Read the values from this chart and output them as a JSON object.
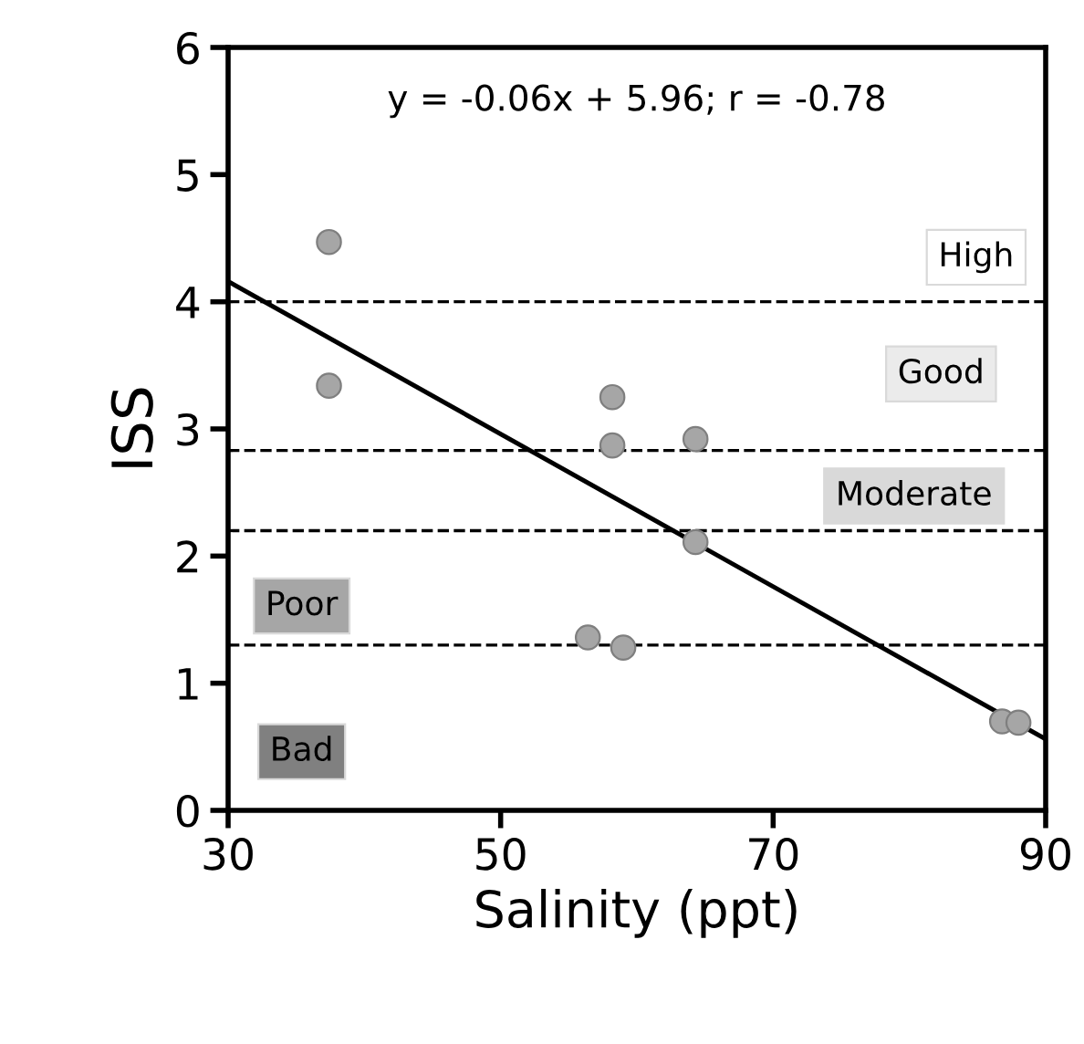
{
  "chart_data": {
    "type": "scatter",
    "xlabel": "Salinity (ppt)",
    "ylabel": "ISS",
    "xlim": [
      30,
      90
    ],
    "xticks": [
      30,
      50,
      70,
      90
    ],
    "ylim": [
      0,
      6
    ],
    "yticks": [
      0,
      1,
      2,
      3,
      4,
      5,
      6
    ],
    "grid": false,
    "marker": "circle",
    "series": [
      {
        "color": "#a6a6a6",
        "x": [
          37.4,
          37.4,
          58.2,
          58.2,
          64.3,
          64.3,
          56.4,
          59.0,
          86.8,
          88.0
        ],
        "values": [
          4.47,
          3.34,
          3.25,
          2.87,
          2.92,
          2.11,
          1.36,
          1.28,
          0.7,
          0.69
        ]
      },
      {
        "type": "line",
        "color": "#000000",
        "x": [
          30,
          90
        ],
        "values": [
          4.16,
          0.56
        ],
        "line_style": "solid",
        "marker": "none"
      }
    ],
    "ref_lines": [
      {
        "axis": "y",
        "value": 4.0,
        "color": "#000000",
        "line_style": "dashed"
      },
      {
        "axis": "y",
        "value": 2.83,
        "color": "#000000",
        "line_style": "dashed"
      },
      {
        "axis": "y",
        "value": 2.2,
        "color": "#000000",
        "line_style": "dashed"
      },
      {
        "axis": "y",
        "value": 1.3,
        "color": "#000000",
        "line_style": "dashed"
      }
    ],
    "annotations": [
      "y = -0.06x + 5.96; r = -0.78",
      "High",
      "Good",
      "Moderate",
      "Poor",
      "Bad"
    ]
  }
}
